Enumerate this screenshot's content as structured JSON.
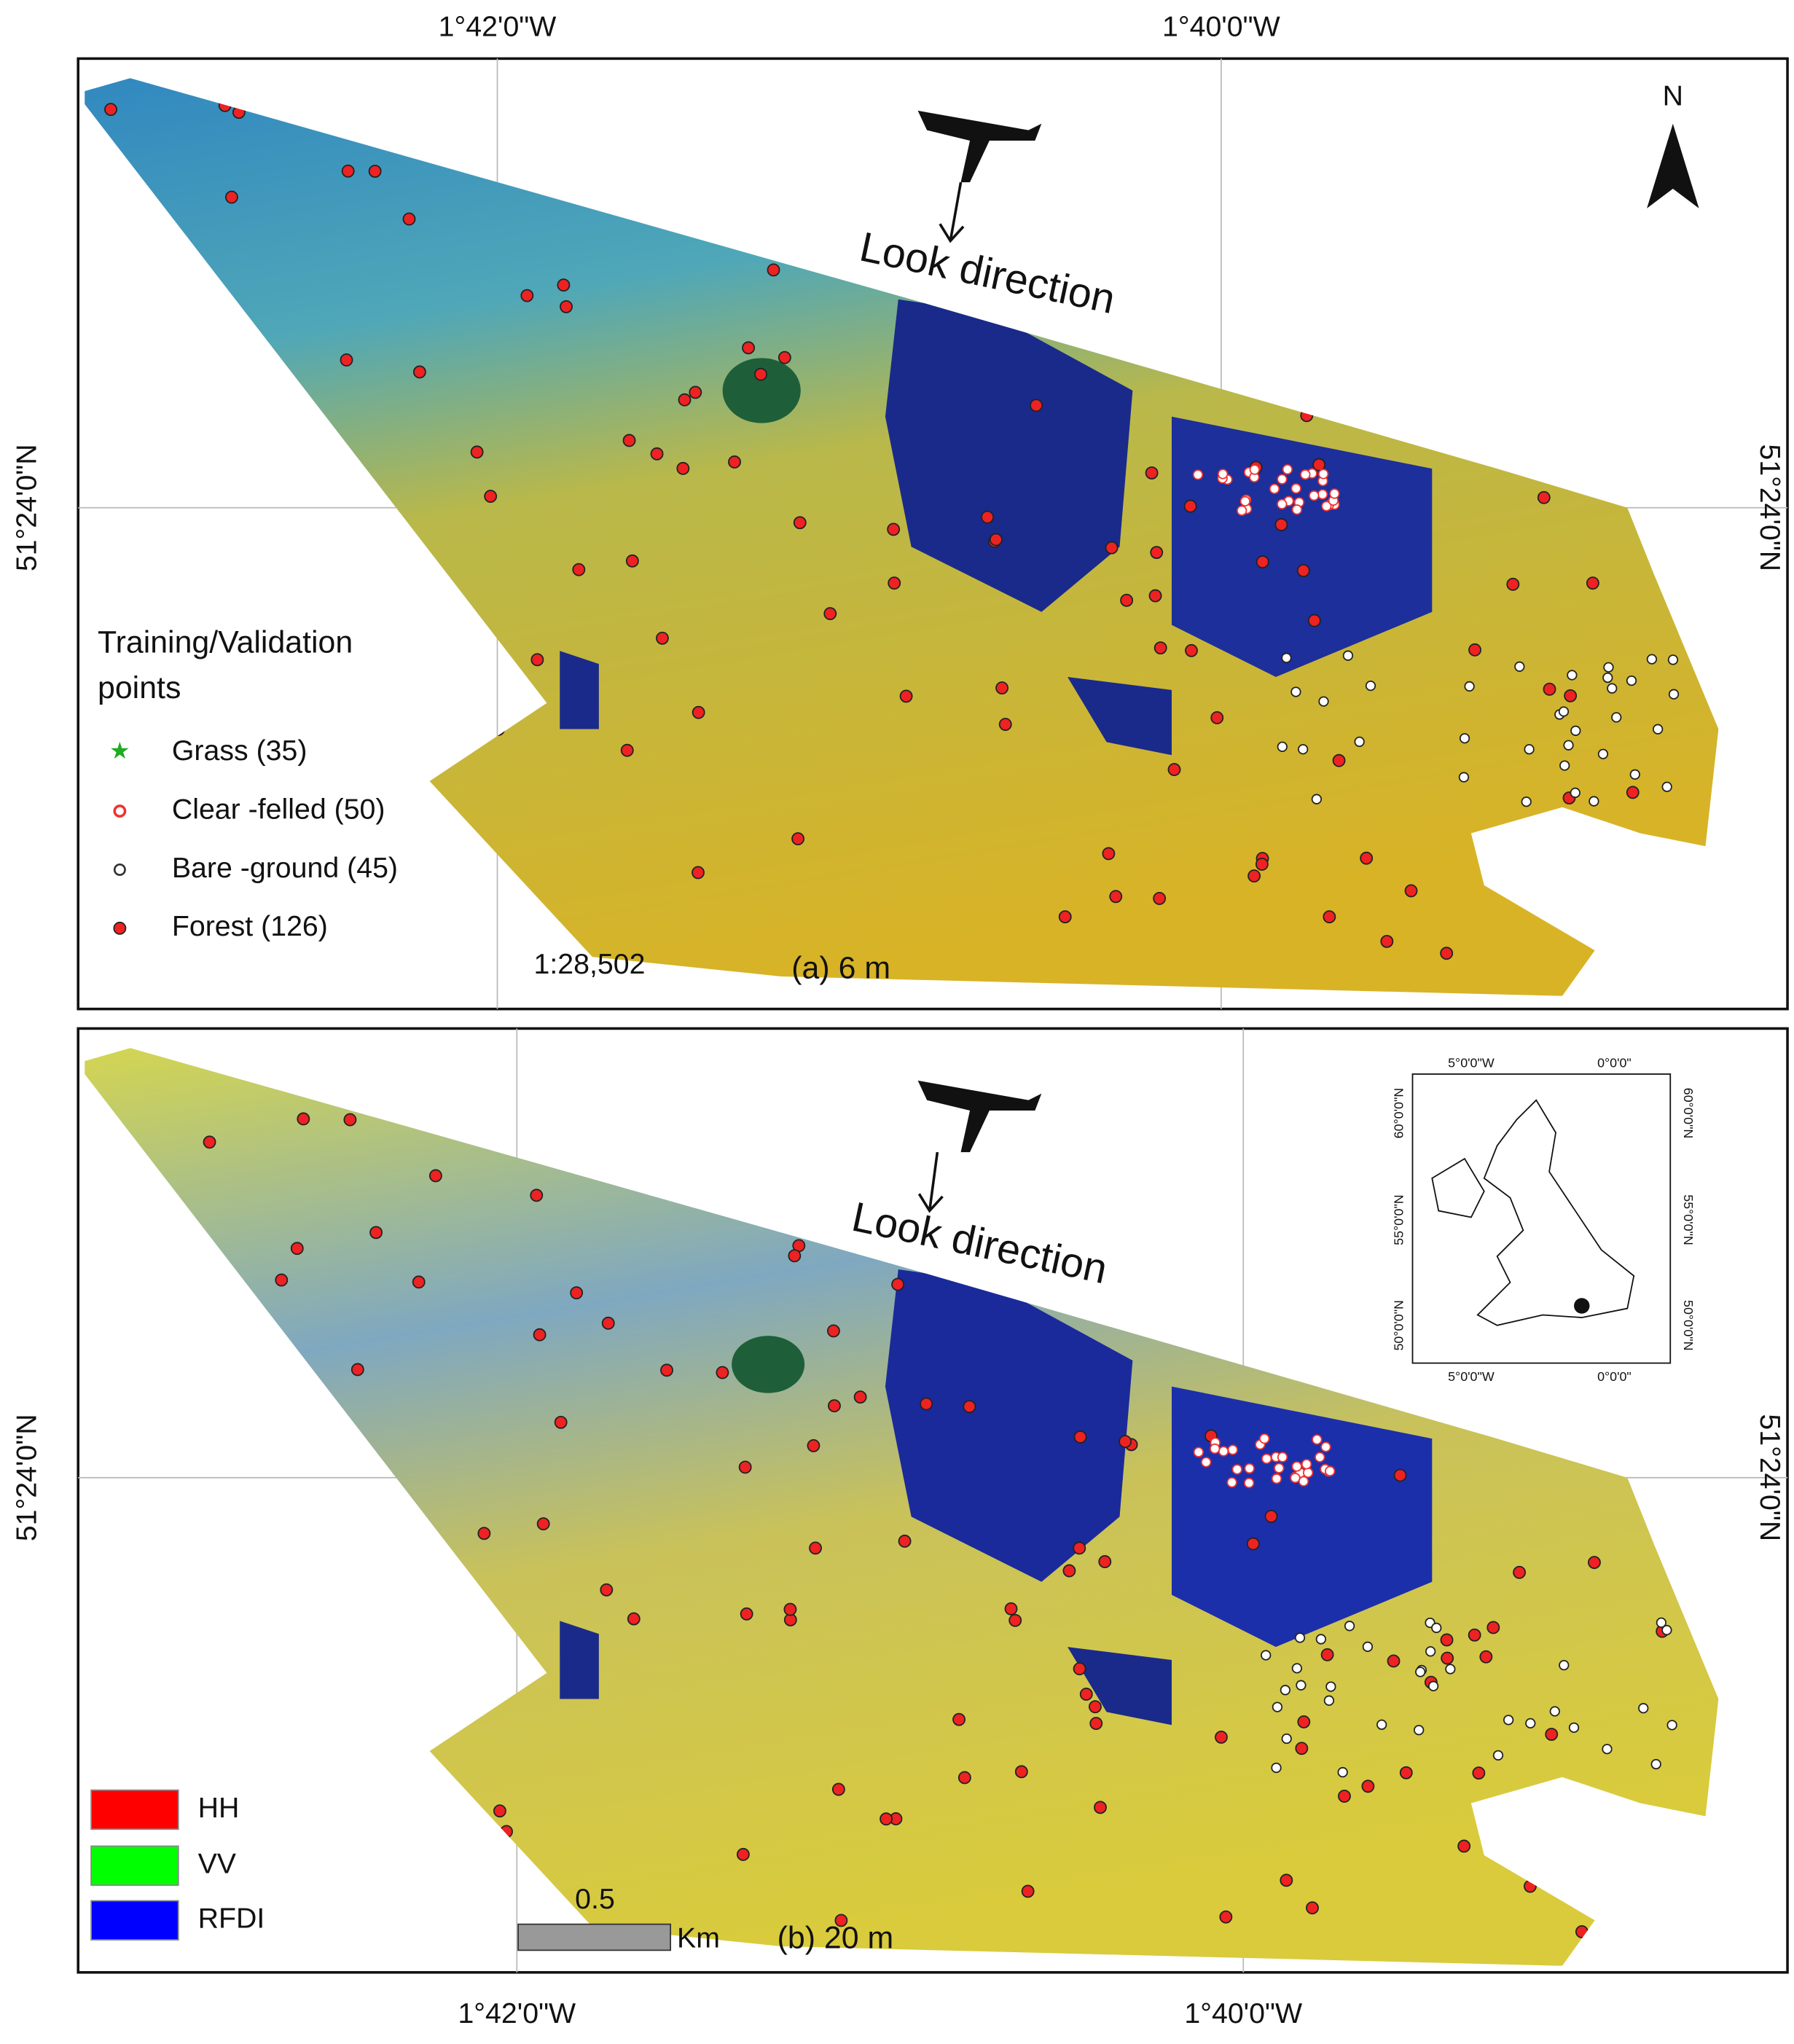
{
  "panel_a": {
    "top_labels": [
      "1°42'0\"W",
      "1°40'0\"W"
    ],
    "left_label": "51°24'0\"N",
    "right_label": "51°24'0\"N",
    "north": "N",
    "look_direction": "Look direction",
    "legend": {
      "title": [
        "Training/Validation",
        "points"
      ],
      "items": [
        "Grass (35)",
        "Clear -felled (50)",
        "Bare -ground (45)",
        "Forest (126)"
      ]
    },
    "scale_ratio": "1:28,502",
    "caption": "(a) 6 m"
  },
  "panel_b": {
    "bottom_labels": [
      "1°42'0\"W",
      "1°40'0\"W"
    ],
    "left_label": "51°24'0\"N",
    "right_label": "51°24'0\"N",
    "look_direction": "Look direction",
    "channels": [
      "HH",
      "VV",
      "RFDI"
    ],
    "scale_value": "0.5",
    "scale_unit": "Km",
    "caption": "(b) 20 m",
    "inset": {
      "top": [
        "5°0'0\"W",
        "0°0'0\""
      ],
      "bottom": [
        "5°0'0\"W",
        "0°0'0\""
      ],
      "left": [
        "60°0'0\"N",
        "55°0'0\"N",
        "50°0'0\"N"
      ],
      "right": [
        "60°0'0\"N",
        "55°0'0\"N",
        "50°0'0\"N"
      ]
    }
  }
}
